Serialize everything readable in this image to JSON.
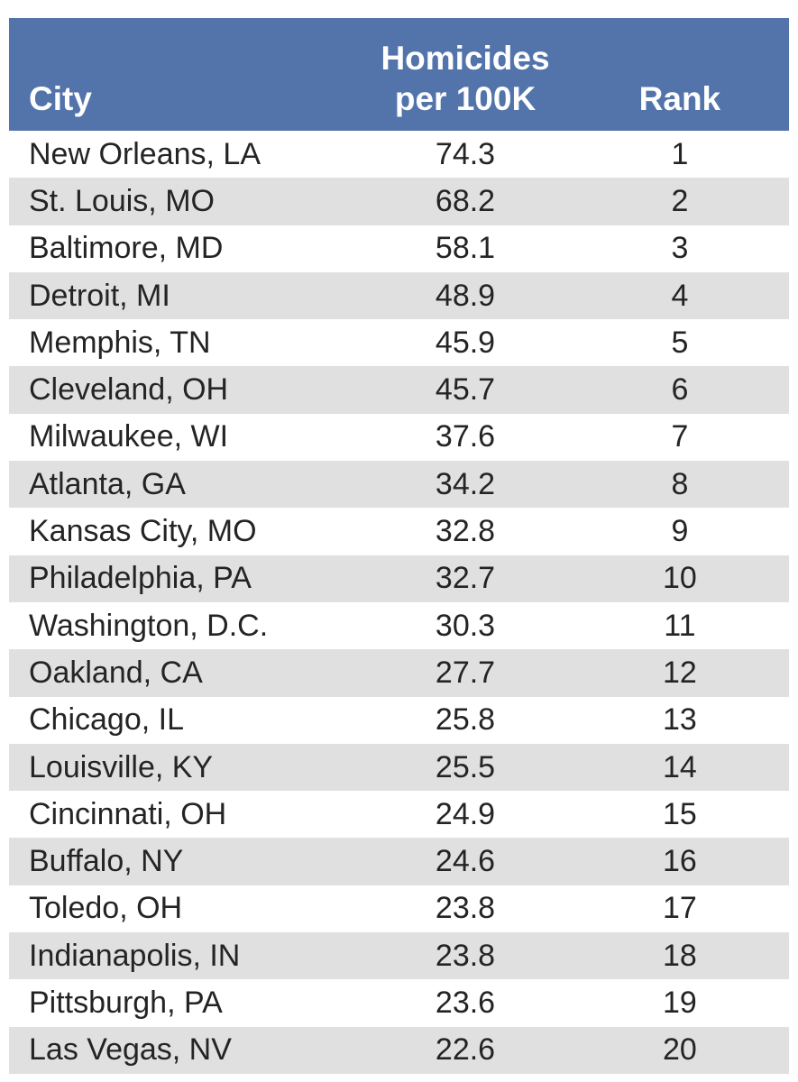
{
  "header": {
    "city_label": "City",
    "rate_label_line1": "Homicides",
    "rate_label_line2": "per 100K",
    "rank_label": "Rank"
  },
  "colors": {
    "header_bg": "#5274ab",
    "header_text": "#ffffff",
    "stripe": "#e0e0e0",
    "body_text": "#242424"
  },
  "chart_data": {
    "type": "table",
    "columns": [
      "City",
      "Homicides per 100K",
      "Rank"
    ],
    "rows": [
      [
        "New Orleans, LA",
        74.3,
        1
      ],
      [
        "St. Louis, MO",
        68.2,
        2
      ],
      [
        "Baltimore, MD",
        58.1,
        3
      ],
      [
        "Detroit, MI",
        48.9,
        4
      ],
      [
        "Memphis, TN",
        45.9,
        5
      ],
      [
        "Cleveland, OH",
        45.7,
        6
      ],
      [
        "Milwaukee, WI",
        37.6,
        7
      ],
      [
        "Atlanta, GA",
        34.2,
        8
      ],
      [
        "Kansas City, MO",
        32.8,
        9
      ],
      [
        "Philadelphia, PA",
        32.7,
        10
      ],
      [
        "Washington, D.C.",
        30.3,
        11
      ],
      [
        "Oakland, CA",
        27.7,
        12
      ],
      [
        "Chicago, IL",
        25.8,
        13
      ],
      [
        "Louisville, KY",
        25.5,
        14
      ],
      [
        "Cincinnati, OH",
        24.9,
        15
      ],
      [
        "Buffalo, NY",
        24.6,
        16
      ],
      [
        "Toledo, OH",
        23.8,
        17
      ],
      [
        "Indianapolis, IN",
        23.8,
        18
      ],
      [
        "Pittsburgh, PA",
        23.6,
        19
      ],
      [
        "Las Vegas, NV",
        22.6,
        20
      ]
    ]
  }
}
